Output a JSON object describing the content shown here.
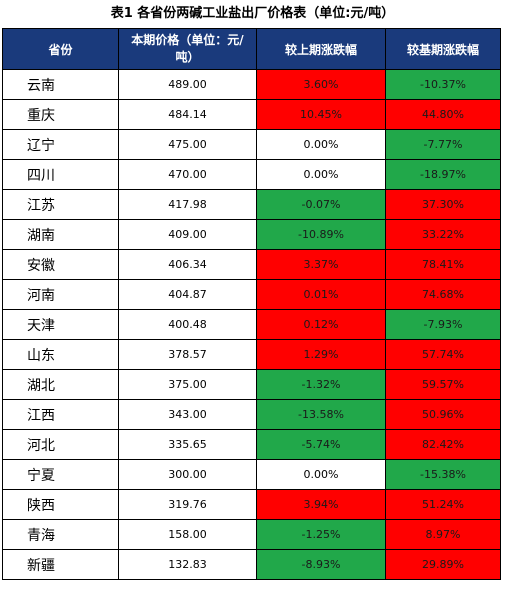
{
  "title": "表1    各省份两碱工业盐出厂价格表（单位:元/吨）",
  "headers": {
    "province": "省份",
    "price": "本期价格（单位：元/吨）",
    "mom": "较上期涨跌幅",
    "yoy": "较基期涨跌幅"
  },
  "colors": {
    "header_bg": "#1a3a7c",
    "up": "#ff0000",
    "down": "#21a84a",
    "flat": "#ffffff"
  },
  "rows": [
    {
      "province": "云南",
      "price": "489.00",
      "mom": "3.60%",
      "mom_dir": "up",
      "yoy": "-10.37%",
      "yoy_dir": "down"
    },
    {
      "province": "重庆",
      "price": "484.14",
      "mom": "10.45%",
      "mom_dir": "up",
      "yoy": "44.80%",
      "yoy_dir": "up"
    },
    {
      "province": "辽宁",
      "price": "475.00",
      "mom": "0.00%",
      "mom_dir": "flat",
      "yoy": "-7.77%",
      "yoy_dir": "down"
    },
    {
      "province": "四川",
      "price": "470.00",
      "mom": "0.00%",
      "mom_dir": "flat",
      "yoy": "-18.97%",
      "yoy_dir": "down"
    },
    {
      "province": "江苏",
      "price": "417.98",
      "mom": "-0.07%",
      "mom_dir": "down",
      "yoy": "37.30%",
      "yoy_dir": "up"
    },
    {
      "province": "湖南",
      "price": "409.00",
      "mom": "-10.89%",
      "mom_dir": "down",
      "yoy": "33.22%",
      "yoy_dir": "up"
    },
    {
      "province": "安徽",
      "price": "406.34",
      "mom": "3.37%",
      "mom_dir": "up",
      "yoy": "78.41%",
      "yoy_dir": "up"
    },
    {
      "province": "河南",
      "price": "404.87",
      "mom": "0.01%",
      "mom_dir": "up",
      "yoy": "74.68%",
      "yoy_dir": "up"
    },
    {
      "province": "天津",
      "price": "400.48",
      "mom": "0.12%",
      "mom_dir": "up",
      "yoy": "-7.93%",
      "yoy_dir": "down"
    },
    {
      "province": "山东",
      "price": "378.57",
      "mom": "1.29%",
      "mom_dir": "up",
      "yoy": "57.74%",
      "yoy_dir": "up"
    },
    {
      "province": "湖北",
      "price": "375.00",
      "mom": "-1.32%",
      "mom_dir": "down",
      "yoy": "59.57%",
      "yoy_dir": "up"
    },
    {
      "province": "江西",
      "price": "343.00",
      "mom": "-13.58%",
      "mom_dir": "down",
      "yoy": "50.96%",
      "yoy_dir": "up"
    },
    {
      "province": "河北",
      "price": "335.65",
      "mom": "-5.74%",
      "mom_dir": "down",
      "yoy": "82.42%",
      "yoy_dir": "up"
    },
    {
      "province": "宁夏",
      "price": "300.00",
      "mom": "0.00%",
      "mom_dir": "flat",
      "yoy": "-15.38%",
      "yoy_dir": "down"
    },
    {
      "province": "陕西",
      "price": "319.76",
      "mom": "3.94%",
      "mom_dir": "up",
      "yoy": "51.24%",
      "yoy_dir": "up"
    },
    {
      "province": "青海",
      "price": "158.00",
      "mom": "-1.25%",
      "mom_dir": "down",
      "yoy": "8.97%",
      "yoy_dir": "up"
    },
    {
      "province": "新疆",
      "price": "132.83",
      "mom": "-8.93%",
      "mom_dir": "down",
      "yoy": "29.89%",
      "yoy_dir": "up"
    }
  ]
}
